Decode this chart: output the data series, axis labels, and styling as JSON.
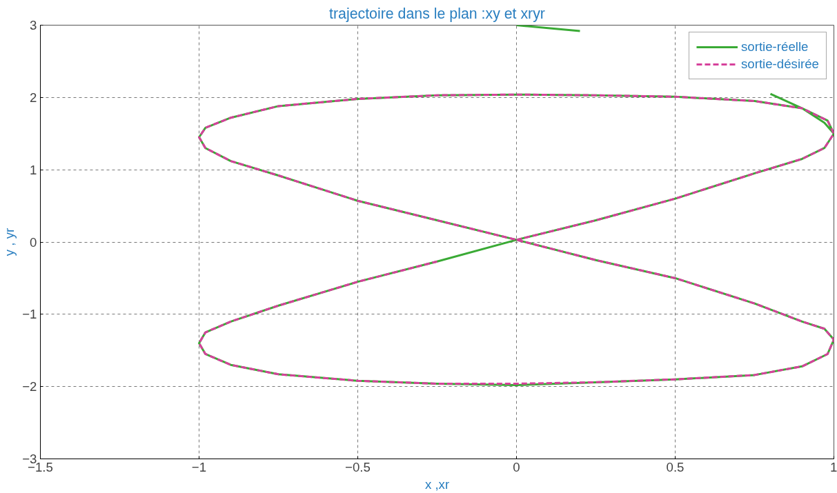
{
  "chart_data": {
    "type": "line",
    "title": "trajectoire dans le plan :xy et xryr",
    "xlabel": "x ,xr",
    "ylabel": "y , yr",
    "xlim": [
      -1.5,
      1
    ],
    "ylim": [
      -3,
      3
    ],
    "xticks": [
      -1.5,
      -1,
      -0.5,
      0,
      0.5,
      1
    ],
    "yticks": [
      -3,
      -2,
      -1,
      0,
      1,
      2,
      3
    ],
    "grid": true,
    "legend": "top right",
    "series": [
      {
        "name": "sortie-réelle",
        "color": "#3aaa35",
        "line_style": "solid",
        "x": [
          0,
          0.2,
          0.4,
          0.6,
          0.8,
          0.9,
          0.97,
          1.0,
          0.98,
          0.9,
          0.75,
          0.5,
          0.25,
          0,
          -0.25,
          -0.5,
          -0.75,
          -0.9,
          -0.98,
          -1.0,
          -0.98,
          -0.9,
          -0.75,
          -0.5,
          -0.25,
          0,
          0.25,
          0.5,
          0.75,
          0.9,
          0.97,
          1.0,
          0.98,
          0.9,
          0.75,
          0.5,
          0.25,
          0,
          -0.25,
          -0.5,
          -0.75,
          -0.9,
          -0.98,
          -1.0,
          -0.98,
          -0.9,
          -0.75,
          -0.5,
          -0.25,
          0,
          0.25,
          0.5,
          0.75,
          0.9,
          0.97,
          1.0
        ],
        "values": [
          3.0,
          2.92,
          null,
          null,
          2.05,
          1.85,
          1.65,
          1.5,
          1.68,
          1.85,
          1.95,
          2.01,
          2.03,
          2.04,
          2.03,
          1.98,
          1.88,
          1.72,
          1.58,
          1.45,
          1.3,
          1.12,
          0.92,
          0.57,
          0.3,
          0.03,
          -0.25,
          -0.5,
          -0.85,
          -1.1,
          -1.2,
          -1.35,
          -1.55,
          -1.72,
          -1.84,
          -1.9,
          -1.94,
          -1.98,
          -1.96,
          -1.92,
          -1.83,
          -1.7,
          -1.55,
          -1.4,
          -1.25,
          -1.1,
          -0.88,
          -0.55,
          -0.27,
          0.03,
          0.3,
          0.6,
          0.95,
          1.15,
          1.3,
          1.5
        ]
      },
      {
        "name": "sortie-désirée",
        "color": "#d6419b",
        "line_style": "dashed",
        "x": [
          0,
          0.25,
          0.5,
          0.75,
          0.9,
          0.97,
          1.0,
          0.98,
          0.9,
          0.75,
          0.5,
          0.25,
          0,
          -0.25,
          -0.5,
          -0.75,
          -0.9,
          -0.98,
          -1.0,
          -0.98,
          -0.9,
          -0.75,
          -0.5,
          -0.25,
          0,
          0.25,
          0.5,
          0.75,
          0.9,
          0.97,
          1.0,
          0.98,
          0.9,
          0.75,
          0.5,
          0.25,
          0,
          -0.25,
          -0.5,
          -0.75,
          -0.9,
          -0.98,
          -1.0,
          -0.98,
          -0.9,
          -0.75,
          -0.5,
          -0.25
        ],
        "values": [
          0.03,
          0.3,
          0.6,
          0.95,
          1.15,
          1.3,
          1.5,
          1.68,
          1.85,
          1.95,
          2.01,
          2.03,
          2.04,
          2.03,
          1.98,
          1.88,
          1.72,
          1.58,
          1.45,
          1.3,
          1.12,
          0.92,
          0.57,
          0.3,
          0.03,
          -0.25,
          -0.5,
          -0.85,
          -1.1,
          -1.2,
          -1.35,
          -1.55,
          -1.72,
          -1.84,
          -1.9,
          -1.94,
          -1.96,
          -1.96,
          -1.92,
          -1.83,
          -1.7,
          -1.55,
          -1.4,
          -1.25,
          -1.1,
          -0.88,
          -0.55,
          -0.27
        ]
      }
    ]
  }
}
